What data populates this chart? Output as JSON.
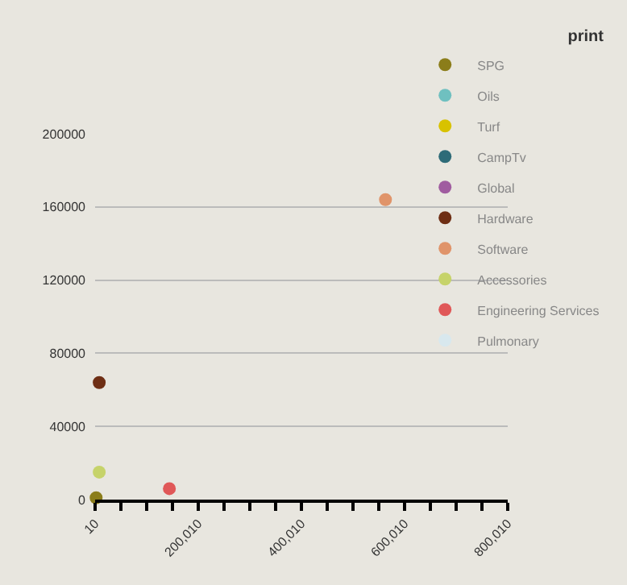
{
  "chart_data": {
    "type": "scatter",
    "legend_title": "print",
    "legend": "top right",
    "grid": "y",
    "marker": "circle",
    "xlim": [
      10,
      800010
    ],
    "ylim": [
      0,
      200000
    ],
    "xticks": [
      10,
      {
        "value": 50010,
        "label": null
      },
      {
        "value": 100010,
        "label": null
      },
      {
        "value": 150010,
        "label": null
      },
      {
        "value": 200010,
        "label": "200,010"
      },
      {
        "value": 250010,
        "label": null
      },
      {
        "value": 300010,
        "label": null
      },
      {
        "value": 350010,
        "label": null
      },
      {
        "value": 400010,
        "label": "400,010"
      },
      {
        "value": 450010,
        "label": null
      },
      {
        "value": 500010,
        "label": null
      },
      {
        "value": 550010,
        "label": null
      },
      {
        "value": 600010,
        "label": "600,010"
      },
      {
        "value": 650010,
        "label": null
      },
      {
        "value": 700010,
        "label": null
      },
      {
        "value": 750010,
        "label": null
      },
      {
        "value": 800010,
        "label": "800,010"
      }
    ],
    "yticks": [
      0,
      40000,
      80000,
      120000,
      160000,
      200000
    ],
    "series": [
      {
        "name": "SPG",
        "color": "#8b7d1a",
        "x": [
          2000
        ],
        "values": [
          1000
        ]
      },
      {
        "name": "Oils",
        "color": "#6fc0c0"
      },
      {
        "name": "Turf",
        "color": "#d8c200"
      },
      {
        "name": "CampTv",
        "color": "#2e6b78"
      },
      {
        "name": "Global",
        "color": "#a05ca0"
      },
      {
        "name": "Hardware",
        "color": "#6e2e14",
        "x": [
          8000
        ],
        "values": [
          64000
        ]
      },
      {
        "name": "Software",
        "color": "#e0946a",
        "x": [
          563000
        ],
        "values": [
          164000
        ]
      },
      {
        "name": "Accessories",
        "color": "#c6d36a",
        "x": [
          8000
        ],
        "values": [
          15000
        ]
      },
      {
        "name": "Engineering Services",
        "color": "#e05858",
        "x": [
          144000
        ],
        "values": [
          6000
        ]
      },
      {
        "name": "Pulmonary",
        "color": "#d8e8ee"
      }
    ]
  }
}
